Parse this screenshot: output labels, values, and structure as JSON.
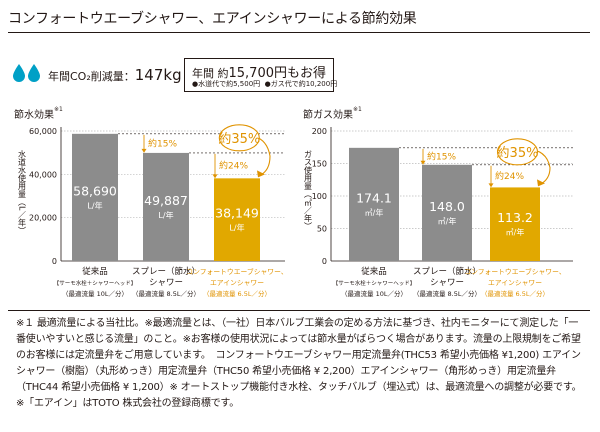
{
  "header": {
    "title": "コンフォートウエーブシャワー、エアインシャワーによる節約効果"
  },
  "co2": {
    "label": "年間CO₂削減量：",
    "value": "147kg"
  },
  "savings": {
    "main_prefix": "年間 約",
    "main_value": "15,700円もお得",
    "sub_water": "●水道代で約5,500円",
    "sub_gas": "●ガス代で約10,200円"
  },
  "colors": {
    "gray_bar": "#8c8c8c",
    "gold_bar": "#e1a800",
    "drop": "#00a0c6",
    "orange_text": "#e09300"
  },
  "chart_data": [
    {
      "type": "bar",
      "title": "節水効果",
      "title_note": "※1",
      "ylabel": "水道水使用量（L／年）",
      "ylim": [
        0,
        60000
      ],
      "yticks": [
        "0",
        "20,000",
        "40,000",
        "60,000"
      ],
      "grid": true,
      "values": [
        58690,
        49887,
        38149
      ],
      "value_labels": [
        "58,690",
        "49,887",
        "38,149"
      ],
      "unit": "L/年",
      "categories": [
        {
          "lines": [
            "従来品",
            "【サーモ水栓＋シャワーヘッド】",
            "（最適流量 10L／分）"
          ],
          "highlight": false
        },
        {
          "lines": [
            "スプレー（節水）",
            "シャワー",
            "（最適流量 8.5L／分）"
          ],
          "highlight": false
        },
        {
          "lines": [
            "コンフォートウエーブシャワー、",
            "エアインシャワー",
            "（最適流量 6.5L／分）"
          ],
          "highlight": true
        }
      ],
      "annotations": {
        "first": "約15%",
        "second": "約24%",
        "total": "約35%"
      }
    },
    {
      "type": "bar",
      "title": "節ガス効果",
      "title_note": "※1",
      "ylabel": "ガス使用量（㎥／年）",
      "ylim": [
        0,
        200
      ],
      "yticks": [
        "0",
        "50",
        "100",
        "150",
        "200"
      ],
      "grid": true,
      "values": [
        174.1,
        148.0,
        113.2
      ],
      "value_labels": [
        "174.1",
        "148.0",
        "113.2"
      ],
      "unit": "㎥/年",
      "categories": [
        {
          "lines": [
            "従来品",
            "【サーモ水栓＋シャワーヘッド】",
            "（最適流量 10L／分）"
          ],
          "highlight": false
        },
        {
          "lines": [
            "スプレー（節水）",
            "シャワー",
            "（最適流量 8.5L／分）"
          ],
          "highlight": false
        },
        {
          "lines": [
            "コンフォートウエーブシャワー、",
            "エアインシャワー",
            "（最適流量 6.5L／分）"
          ],
          "highlight": true
        }
      ],
      "annotations": {
        "first": "約15%",
        "second": "約24%",
        "total": "約35%"
      }
    }
  ],
  "footnote": {
    "text": "※１ 最適流量による当社比。※最適流量とは、（一社）日本バルブ工業会の定める方法に基づき、社内モニターにて測定した「一番使いやすいと感じる流量」のこと。※お客様の使用状況によっては節水量がばらつく場合があります。流量の上限規制をご希望のお客様には定流量弁をご用意しています。　コンフォートウエーブシャワー用定流量弁(THC53 希望小売価格 ¥1,200) エアインシャワー（樹脂）（丸形めっき）用定流量弁（THC50 希望小売価格 ¥ 2,200）エアインシャワー（角形めっき）用定流量弁（THC44 希望小売価格 ¥ 1,200）※ オートストップ機能付き水栓、タッチバルブ（埋込式）は、最適流量への調整が必要です。※「エアイン」はTOTO 株式会社の登録商標です。"
  }
}
